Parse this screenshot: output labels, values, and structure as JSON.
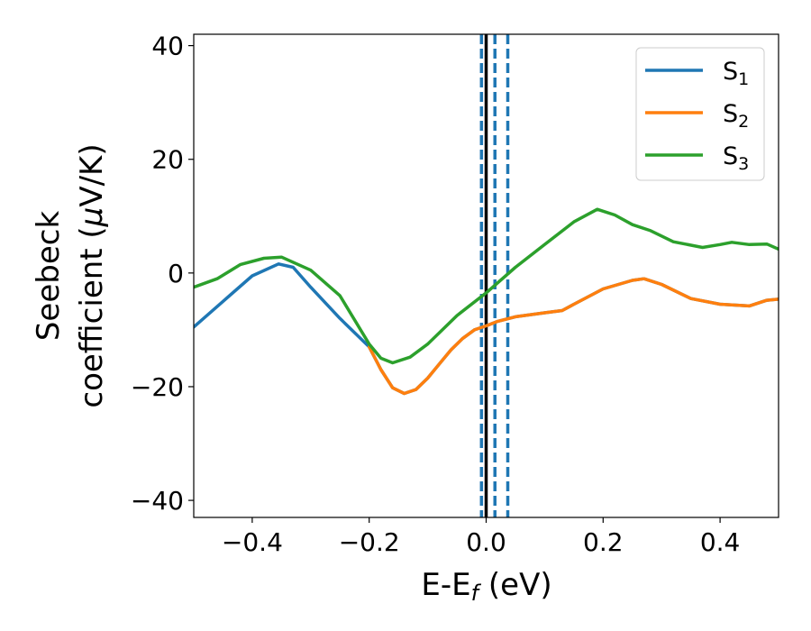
{
  "chart_data": {
    "type": "line",
    "xlabel": "E-E",
    "xlabel_sub": "f",
    "xlabel_unit": " (eV)",
    "ylabel_line1": "Seebeck",
    "ylabel_line2": "coefficient  (",
    "ylabel_mu": "μ",
    "ylabel_line2_end": "V/K)",
    "xlim": [
      -0.5,
      0.5
    ],
    "ylim": [
      -43,
      42
    ],
    "x_ticks": [
      -0.4,
      -0.2,
      0.0,
      0.2,
      0.4
    ],
    "x_tick_labels": [
      "−0.4",
      "−0.2",
      "0.0",
      "0.2",
      "0.4"
    ],
    "y_ticks": [
      -40,
      -20,
      0,
      20,
      40
    ],
    "y_tick_labels": [
      "−40",
      "−20",
      "0",
      "20",
      "40"
    ],
    "legend_position": "top-right",
    "series": [
      {
        "name": "S",
        "sub": "1",
        "color": "#1f77b4",
        "points": [
          [
            -0.5,
            -9.5
          ],
          [
            -0.45,
            -5
          ],
          [
            -0.4,
            -0.5
          ],
          [
            -0.355,
            1.6
          ],
          [
            -0.33,
            1
          ],
          [
            -0.3,
            -2.5
          ],
          [
            -0.25,
            -8
          ],
          [
            -0.2,
            -13
          ],
          [
            -0.18,
            -17
          ],
          [
            -0.16,
            -20.2
          ],
          [
            -0.14,
            -21.2
          ],
          [
            -0.12,
            -20.5
          ],
          [
            -0.1,
            -18.5
          ],
          [
            -0.08,
            -16
          ],
          [
            -0.06,
            -13.5
          ],
          [
            -0.04,
            -11.5
          ],
          [
            -0.02,
            -10
          ],
          [
            0.0,
            -9.3
          ],
          [
            0.02,
            -8.5
          ],
          [
            0.05,
            -7.7
          ],
          [
            0.1,
            -7
          ],
          [
            0.13,
            -6.6
          ],
          [
            0.15,
            -5.5
          ],
          [
            0.2,
            -2.8
          ],
          [
            0.25,
            -1.3
          ],
          [
            0.27,
            -1
          ],
          [
            0.3,
            -2
          ],
          [
            0.35,
            -4.5
          ],
          [
            0.4,
            -5.5
          ],
          [
            0.45,
            -5.8
          ],
          [
            0.48,
            -4.8
          ],
          [
            0.5,
            -4.6
          ]
        ]
      },
      {
        "name": "S",
        "sub": "2",
        "color": "#ff7f0e",
        "points": [
          [
            -0.2,
            -13
          ],
          [
            -0.18,
            -17
          ],
          [
            -0.16,
            -20.2
          ],
          [
            -0.14,
            -21.2
          ],
          [
            -0.12,
            -20.5
          ],
          [
            -0.1,
            -18.5
          ],
          [
            -0.08,
            -16
          ],
          [
            -0.06,
            -13.5
          ],
          [
            -0.04,
            -11.5
          ],
          [
            -0.02,
            -10
          ],
          [
            0.0,
            -9.3
          ],
          [
            0.02,
            -8.5
          ],
          [
            0.05,
            -7.7
          ],
          [
            0.1,
            -7
          ],
          [
            0.13,
            -6.6
          ],
          [
            0.15,
            -5.5
          ],
          [
            0.2,
            -2.8
          ],
          [
            0.25,
            -1.3
          ],
          [
            0.27,
            -1
          ],
          [
            0.3,
            -2
          ],
          [
            0.35,
            -4.5
          ],
          [
            0.4,
            -5.5
          ],
          [
            0.45,
            -5.8
          ],
          [
            0.48,
            -4.8
          ],
          [
            0.5,
            -4.6
          ]
        ]
      },
      {
        "name": "S",
        "sub": "3",
        "color": "#2ca02c",
        "points": [
          [
            -0.5,
            -2.5
          ],
          [
            -0.46,
            -1
          ],
          [
            -0.42,
            1.5
          ],
          [
            -0.38,
            2.6
          ],
          [
            -0.35,
            2.8
          ],
          [
            -0.3,
            0.5
          ],
          [
            -0.25,
            -4
          ],
          [
            -0.2,
            -12.5
          ],
          [
            -0.18,
            -15
          ],
          [
            -0.16,
            -15.8
          ],
          [
            -0.13,
            -14.8
          ],
          [
            -0.1,
            -12.5
          ],
          [
            -0.05,
            -7.5
          ],
          [
            0.0,
            -3.5
          ],
          [
            0.05,
            1
          ],
          [
            0.1,
            5
          ],
          [
            0.15,
            9
          ],
          [
            0.19,
            11.2
          ],
          [
            0.22,
            10.2
          ],
          [
            0.25,
            8.5
          ],
          [
            0.28,
            7.5
          ],
          [
            0.32,
            5.5
          ],
          [
            0.37,
            4.5
          ],
          [
            0.4,
            5
          ],
          [
            0.42,
            5.4
          ],
          [
            0.45,
            5
          ],
          [
            0.48,
            5.1
          ],
          [
            0.5,
            4.2
          ]
        ]
      }
    ],
    "vertical_lines": [
      {
        "x": -0.008,
        "style": "dashed",
        "color": "#1f77b4"
      },
      {
        "x": 0.0,
        "style": "solid",
        "color": "#000000"
      },
      {
        "x": 0.015,
        "style": "dashed",
        "color": "#1f77b4"
      },
      {
        "x": 0.037,
        "style": "dashed",
        "color": "#1f77b4"
      }
    ]
  }
}
